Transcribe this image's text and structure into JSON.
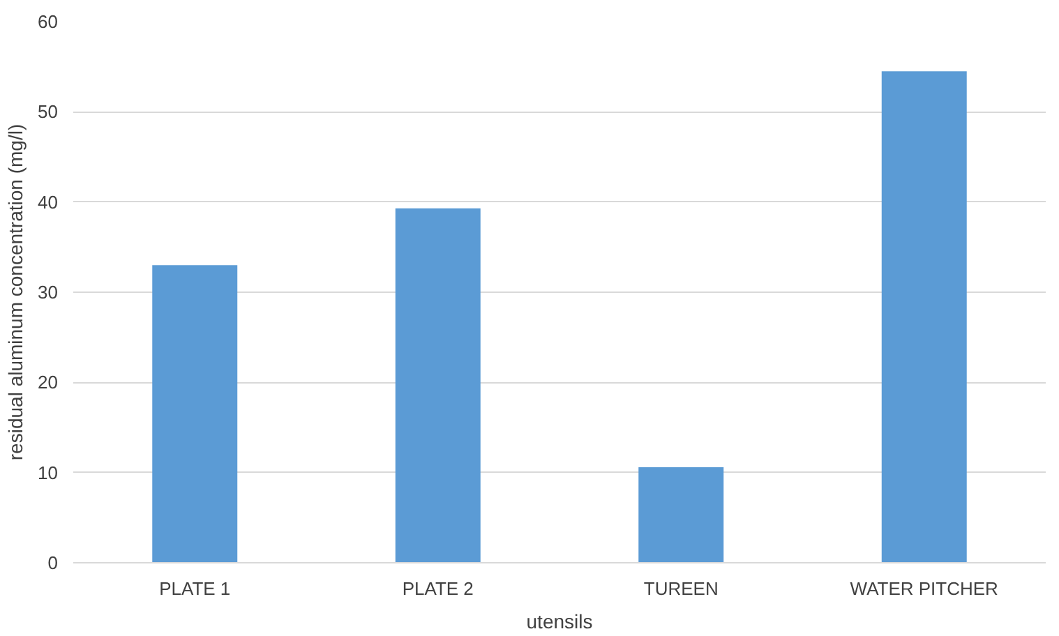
{
  "chart_data": {
    "type": "bar",
    "xlabel": "utensils",
    "ylabel": "residual aluminum concentration (mg/l)",
    "categories": [
      "PLATE 1",
      "PLATE 2",
      "TUREEN",
      "WATER PITCHER"
    ],
    "values": [
      33.0,
      39.3,
      10.6,
      54.5
    ],
    "color": "#5b9bd5",
    "ylim": [
      0,
      60
    ],
    "yticks": [
      0,
      10,
      20,
      30,
      40,
      50,
      60
    ],
    "grid": "y"
  }
}
